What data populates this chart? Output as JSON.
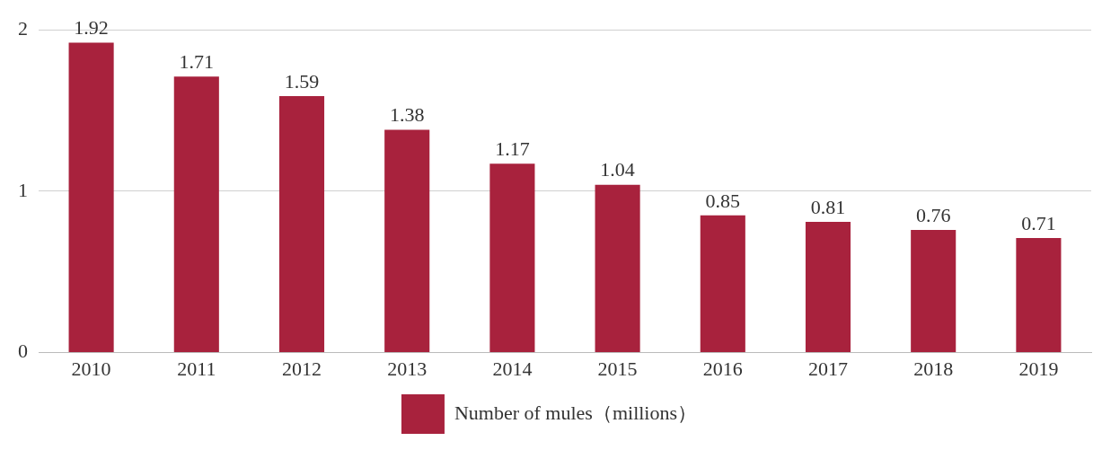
{
  "chart_data": {
    "type": "bar",
    "categories": [
      "2010",
      "2011",
      "2012",
      "2013",
      "2014",
      "2015",
      "2016",
      "2017",
      "2018",
      "2019"
    ],
    "series": [
      {
        "name": "Number of mules（millions）",
        "color": "#a8223d",
        "values": [
          1.92,
          1.71,
          1.59,
          1.38,
          1.17,
          1.04,
          0.85,
          0.81,
          0.76,
          0.71
        ]
      }
    ],
    "ylim": [
      0,
      2
    ],
    "yticks": [
      0,
      1,
      2
    ],
    "grid": "y",
    "legend": "bottom",
    "data_labels": true
  }
}
